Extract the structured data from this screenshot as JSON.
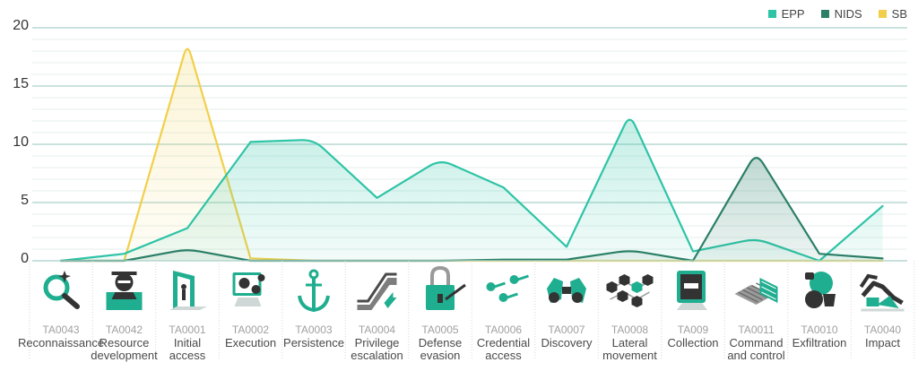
{
  "colors": {
    "EPP": "#2ec4a6",
    "NIDS": "#2b7f67",
    "SB": "#f2cf4a",
    "grid": "#cfe4e2",
    "icon": "#1fae8f",
    "icon_dark": "#333333"
  },
  "legend": [
    {
      "name": "EPP",
      "color_key": "EPP"
    },
    {
      "name": "NIDS",
      "color_key": "NIDS"
    },
    {
      "name": "SB",
      "color_key": "SB"
    }
  ],
  "tactics": [
    {
      "code": "TA0043",
      "name": [
        "Reconnaissance"
      ],
      "icon": "magnifier-icon"
    },
    {
      "code": "TA0042",
      "name": [
        "Resource",
        "development"
      ],
      "icon": "hacker-icon"
    },
    {
      "code": "TA0001",
      "name": [
        "Initial",
        "access"
      ],
      "icon": "door-icon"
    },
    {
      "code": "TA0002",
      "name": [
        "Execution"
      ],
      "icon": "gears-monitor-icon"
    },
    {
      "code": "TA0003",
      "name": [
        "Persistence"
      ],
      "icon": "anchor-icon"
    },
    {
      "code": "TA0004",
      "name": [
        "Privilege",
        "escalation"
      ],
      "icon": "escalator-icon"
    },
    {
      "code": "TA0005",
      "name": [
        "Defense",
        "evasion"
      ],
      "icon": "padlock-icon"
    },
    {
      "code": "TA0006",
      "name": [
        "Credential",
        "access"
      ],
      "icon": "keys-icon"
    },
    {
      "code": "TA0007",
      "name": [
        "Discovery"
      ],
      "icon": "binoculars-icon"
    },
    {
      "code": "TA0008",
      "name": [
        "Lateral",
        "movement"
      ],
      "icon": "network-cubes-icon"
    },
    {
      "code": "TA009",
      "name": [
        "Collection"
      ],
      "icon": "monitor-icon"
    },
    {
      "code": "TA0011",
      "name": [
        "Command",
        "and control"
      ],
      "icon": "server-icon"
    },
    {
      "code": "TA0010",
      "name": [
        "Exfiltration"
      ],
      "icon": "thief-icon"
    },
    {
      "code": "TA0040",
      "name": [
        "Impact"
      ],
      "icon": "chart-down-icon"
    }
  ],
  "chart_data": {
    "type": "area",
    "categories": [
      "TA0043",
      "TA0042",
      "TA0001",
      "TA0002",
      "TA0003",
      "TA0004",
      "TA0005",
      "TA0006",
      "TA0007",
      "TA0008",
      "TA009",
      "TA0011",
      "TA0010",
      "TA0040"
    ],
    "series": [
      {
        "name": "EPP",
        "values": [
          0,
          0.6,
          2.8,
          10.2,
          10.4,
          5.4,
          8.7,
          6.3,
          1.2,
          12.6,
          0.8,
          1.9,
          0,
          4.7
        ]
      },
      {
        "name": "NIDS",
        "values": [
          0,
          0,
          1.0,
          0,
          0,
          0,
          0,
          0.1,
          0.1,
          0.9,
          0,
          9.3,
          0.6,
          0.2
        ]
      },
      {
        "name": "SB",
        "values": [
          0,
          0,
          18.7,
          0.2,
          0,
          0,
          0,
          0,
          0,
          0,
          0,
          0,
          0,
          0
        ]
      }
    ],
    "yticks": [
      0,
      5,
      10,
      15,
      20
    ],
    "ylim": [
      0,
      20
    ],
    "grid": true,
    "minor_grid_step": 1,
    "legend_position": "top-right",
    "curve": "rounded-peaks"
  }
}
